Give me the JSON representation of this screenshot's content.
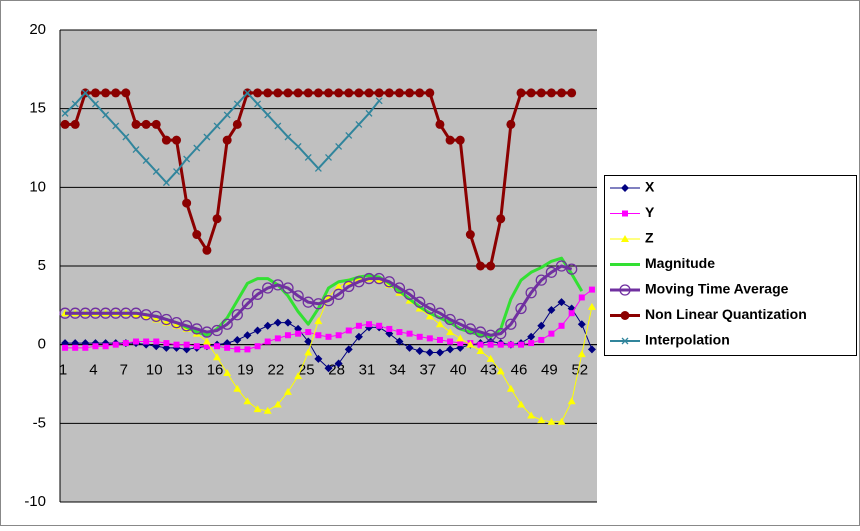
{
  "chart_data": {
    "type": "line",
    "categories": [
      "1",
      null,
      null,
      "4",
      null,
      null,
      "7",
      null,
      null,
      "10",
      null,
      null,
      "13",
      null,
      null,
      "16",
      null,
      null,
      "19",
      null,
      null,
      "22",
      null,
      null,
      "25",
      null,
      null,
      "28",
      null,
      null,
      "31",
      null,
      null,
      "34",
      null,
      null,
      "37",
      null,
      null,
      "40",
      null,
      null,
      "43",
      null,
      null,
      "46",
      null,
      null,
      "49",
      null,
      null,
      "52",
      null
    ],
    "ylim": [
      -10,
      20
    ],
    "yticks": [
      -10,
      -5,
      0,
      5,
      10,
      15,
      20
    ],
    "grid": true,
    "legend": "right",
    "series": [
      {
        "name": "X",
        "color": "#000080",
        "marker": "diamond",
        "values": [
          0.1,
          0.1,
          0.1,
          0.1,
          0.1,
          0.1,
          0.1,
          0.1,
          0,
          -0.1,
          -0.2,
          -0.2,
          -0.3,
          -0.2,
          -0.1,
          0,
          0.1,
          0.3,
          0.6,
          0.9,
          1.2,
          1.4,
          1.4,
          1,
          0.2,
          -0.9,
          -1.5,
          -1.2,
          -0.3,
          0.5,
          1.1,
          1.1,
          0.7,
          0.2,
          -0.2,
          -0.4,
          -0.5,
          -0.5,
          -0.3,
          -0.2,
          0,
          0.1,
          0.2,
          0.1,
          0,
          0.1,
          0.5,
          1.2,
          2.2,
          2.7,
          2.3,
          1.3,
          -0.3
        ]
      },
      {
        "name": "Y",
        "color": "#ff00ff",
        "marker": "square",
        "values": [
          -0.2,
          -0.2,
          -0.2,
          -0.1,
          -0.1,
          0,
          0.1,
          0.2,
          0.2,
          0.2,
          0.1,
          0,
          0,
          -0.1,
          -0.1,
          -0.1,
          -0.2,
          -0.3,
          -0.3,
          -0.1,
          0.2,
          0.4,
          0.6,
          0.7,
          0.8,
          0.6,
          0.5,
          0.6,
          0.9,
          1.2,
          1.3,
          1.2,
          1,
          0.8,
          0.7,
          0.5,
          0.4,
          0.3,
          0.2,
          0.1,
          0.1,
          0,
          0,
          0,
          0,
          0,
          0.1,
          0.3,
          0.7,
          1.2,
          2,
          3,
          3.5
        ]
      },
      {
        "name": "Z",
        "color": "#ffff00",
        "marker": "triangle",
        "values": [
          2,
          2,
          2,
          2,
          2,
          2,
          2,
          1.9,
          1.8,
          1.6,
          1.4,
          1.2,
          1,
          0.7,
          0.2,
          -0.8,
          -1.8,
          -2.8,
          -3.6,
          -4.1,
          -4.2,
          -3.8,
          -3,
          -2,
          -0.5,
          1.5,
          3,
          3.7,
          4,
          4.2,
          4.2,
          4.1,
          3.8,
          3.3,
          2.8,
          2.3,
          1.8,
          1.3,
          0.8,
          0.4,
          0,
          -0.4,
          -0.9,
          -1.7,
          -2.8,
          -3.8,
          -4.5,
          -4.8,
          -4.9,
          -4.9,
          -3.6,
          -0.6,
          2.4
        ]
      },
      {
        "name": "Magnitude",
        "color": "#33e033",
        "marker": "none",
        "values": [
          2,
          2,
          2,
          2,
          2,
          2,
          2,
          2,
          1.9,
          1.8,
          1.6,
          1.4,
          1.1,
          0.8,
          0.6,
          1,
          1.7,
          2.8,
          3.9,
          4.2,
          4.2,
          3.8,
          3.1,
          2.1,
          1.3,
          2.3,
          3.6,
          4,
          4.1,
          4.3,
          4.4,
          4.3,
          3.9,
          3.4,
          2.9,
          2.4,
          2,
          1.7,
          1.4,
          1,
          0.8,
          0.6,
          0.5,
          1,
          2.9,
          4.1,
          4.6,
          4.9,
          5.3,
          5.5,
          4.5,
          3.4,
          null
        ]
      },
      {
        "name": "Moving Time Average",
        "color": "#7030a0",
        "marker": "circle-open",
        "values": [
          2,
          2,
          2,
          2,
          2,
          2,
          2,
          2,
          1.9,
          1.8,
          1.6,
          1.4,
          1.2,
          1,
          0.8,
          0.9,
          1.3,
          1.9,
          2.6,
          3.2,
          3.6,
          3.8,
          3.6,
          3.1,
          2.7,
          2.6,
          2.8,
          3.2,
          3.7,
          4,
          4.2,
          4.2,
          4,
          3.6,
          3.2,
          2.7,
          2.3,
          2,
          1.6,
          1.3,
          1,
          0.8,
          0.6,
          0.7,
          1.3,
          2.3,
          3.3,
          4.1,
          4.6,
          5,
          4.8,
          null,
          null
        ]
      },
      {
        "name": "Non Linear Quantization",
        "color": "#8b0000",
        "marker": "circle",
        "values": [
          14,
          14,
          16,
          16,
          16,
          16,
          16,
          14,
          14,
          14,
          13,
          13,
          9,
          7,
          6,
          8,
          13,
          14,
          16,
          16,
          16,
          16,
          16,
          16,
          16,
          16,
          16,
          16,
          16,
          16,
          16,
          16,
          16,
          16,
          16,
          16,
          16,
          14,
          13,
          13,
          7,
          5,
          5,
          8,
          14,
          16,
          16,
          16,
          16,
          16,
          16,
          null,
          null
        ]
      },
      {
        "name": "Interpolation",
        "color": "#31859c",
        "marker": "x",
        "values": [
          14.7,
          15.3,
          16,
          15.3,
          14.6,
          13.9,
          13.2,
          12.4,
          11.7,
          11,
          10.3,
          11,
          11.8,
          12.5,
          13.2,
          13.9,
          14.6,
          15.3,
          16,
          15.3,
          14.6,
          13.9,
          13.2,
          12.6,
          11.9,
          11.2,
          11.9,
          12.6,
          13.3,
          14,
          14.7,
          15.5,
          null,
          null,
          null,
          null,
          null,
          null,
          null,
          null,
          null,
          null,
          null,
          null,
          null,
          null,
          null,
          null,
          null,
          null,
          null,
          null,
          null
        ]
      }
    ]
  }
}
